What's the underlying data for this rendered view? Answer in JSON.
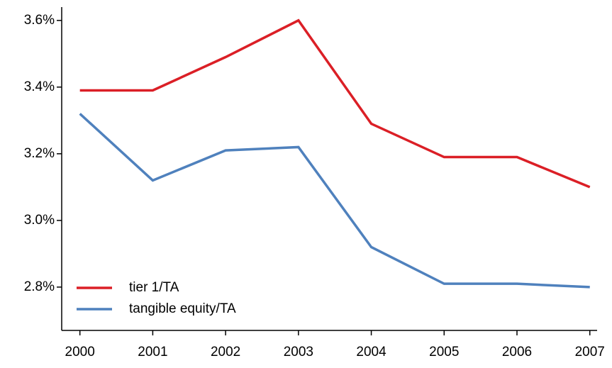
{
  "chart_data": {
    "type": "line",
    "x": [
      2000,
      2001,
      2002,
      2003,
      2004,
      2005,
      2006,
      2007
    ],
    "xlim": [
      1999.75,
      2007.1
    ],
    "xticks": [
      2000,
      2001,
      2002,
      2003,
      2004,
      2005,
      2006,
      2007
    ],
    "ylim": [
      2.67,
      3.64
    ],
    "yticks": [
      {
        "value": 2.8,
        "label": "2.8%"
      },
      {
        "value": 3.0,
        "label": "3.0%"
      },
      {
        "value": 3.2,
        "label": "3.2%"
      },
      {
        "value": 3.4,
        "label": "3.4%"
      },
      {
        "value": 3.6,
        "label": "3.6%"
      }
    ],
    "legend": "bottom-left",
    "series": [
      {
        "name": "tier 1/TA",
        "color": "#db1f26",
        "values": [
          3.39,
          3.39,
          3.49,
          3.6,
          3.29,
          3.19,
          3.19,
          3.1
        ]
      },
      {
        "name": "tangible equity/TA",
        "color": "#4f81bd",
        "values": [
          3.32,
          3.12,
          3.21,
          3.22,
          2.92,
          2.81,
          2.81,
          2.8
        ]
      }
    ]
  }
}
